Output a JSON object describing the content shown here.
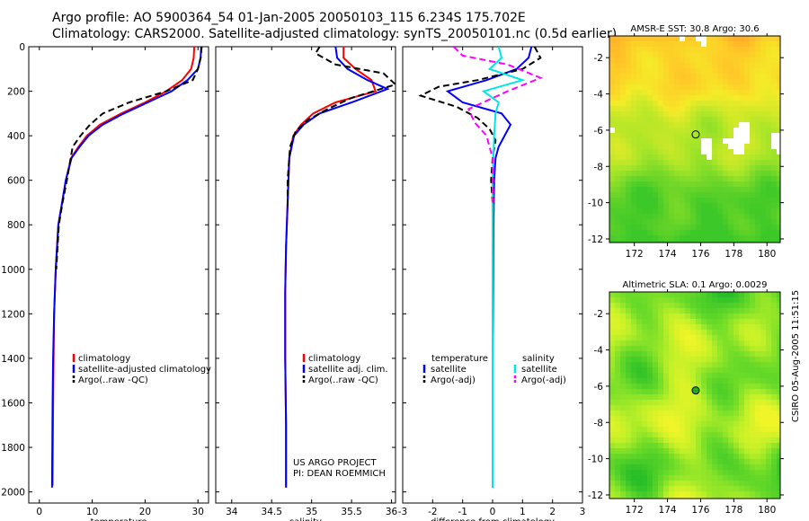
{
  "title_line1": "Argo profile: AO 5900364_54 01-Jan-2005 20050103_115 6.234S 175.702E",
  "title_line2": "Climatology: CARS2000. Satellite-adjusted climatology: synTS_20050101.nc (0.5d earlier)",
  "credit_line1": "US ARGO PROJECT",
  "credit_line2": "PI: DEAN ROEMMICH",
  "timestamp": "CSIRO 05-Aug-2005 11:51:15",
  "colors": {
    "climatology": "#ff0000",
    "satellite": "#0000ff",
    "argo": "#000000",
    "cyan": "#00e5e5",
    "magenta": "#ff00ff"
  },
  "chart_data": [
    {
      "type": "line",
      "xlabel": "temperature",
      "ylabel": "",
      "xlim": [
        -2,
        32
      ],
      "ylim": [
        0,
        2050
      ],
      "y_inverted": true,
      "xticks": [
        0,
        10,
        20,
        30
      ],
      "yticks": [
        0,
        200,
        400,
        600,
        800,
        1000,
        1200,
        1400,
        1600,
        1800,
        2000
      ],
      "legend": [
        "climatology",
        "satellite-adjusted climatology",
        "Argo(..raw -QC)"
      ],
      "series": [
        {
          "name": "climatology",
          "style": "solid",
          "color": "#ff0000",
          "x": [
            29.3,
            29.2,
            28.7,
            27,
            24,
            20,
            15.5,
            11.5,
            9,
            7.4,
            6,
            5,
            4.3,
            3.6,
            3.1,
            2.8,
            2.7,
            2.6,
            2.5
          ],
          "y": [
            0,
            50,
            100,
            150,
            200,
            250,
            300,
            350,
            400,
            450,
            500,
            600,
            700,
            800,
            1000,
            1200,
            1400,
            1600,
            1970
          ]
        },
        {
          "name": "satellite-adjusted climatology",
          "style": "solid",
          "color": "#0000ff",
          "x": [
            30.6,
            30.5,
            30,
            28,
            25,
            20.5,
            16,
            12,
            9.3,
            7.6,
            6.1,
            5,
            4.3,
            3.6,
            3.1,
            2.8,
            2.6,
            2.5,
            2.4
          ],
          "y": [
            0,
            50,
            100,
            150,
            200,
            250,
            300,
            350,
            400,
            450,
            500,
            600,
            700,
            800,
            1000,
            1200,
            1400,
            1600,
            1980
          ]
        },
        {
          "name": "Argo(..raw -QC)",
          "style": "dash",
          "color": "#000000",
          "x": [
            30.7,
            30.5,
            30,
            29,
            24,
            17,
            12,
            9.6,
            7.8,
            6.3,
            5.2,
            4.4,
            3.7,
            3.2
          ],
          "y": [
            0,
            50,
            100,
            150,
            200,
            250,
            300,
            350,
            400,
            450,
            600,
            700,
            800,
            1000
          ]
        }
      ]
    },
    {
      "type": "line",
      "xlabel": "salinity",
      "xlim": [
        33.8,
        36.05
      ],
      "ylim": [
        0,
        2050
      ],
      "y_inverted": true,
      "xticks": [
        34,
        34.5,
        35,
        35.5,
        36
      ],
      "legend": [
        "climatology",
        "satellite adj. clim.",
        "Argo(..raw -QC)"
      ],
      "series": [
        {
          "name": "climatology",
          "style": "solid",
          "color": "#ff0000",
          "x": [
            35.4,
            35.4,
            35.55,
            35.75,
            35.8,
            35.3,
            35.02,
            34.87,
            34.77,
            34.72,
            34.7,
            34.68,
            34.67,
            34.67,
            34.68,
            34.68
          ],
          "y": [
            0,
            50,
            100,
            150,
            200,
            250,
            300,
            350,
            400,
            500,
            700,
            900,
            1100,
            1400,
            1700,
            1980
          ]
        },
        {
          "name": "satellite adj. clim.",
          "style": "solid",
          "color": "#0000ff",
          "x": [
            35.3,
            35.32,
            35.45,
            35.7,
            35.95,
            35.5,
            35.1,
            34.9,
            34.78,
            34.72,
            34.7,
            34.68,
            34.67,
            34.67,
            34.68,
            34.68
          ],
          "y": [
            0,
            50,
            100,
            150,
            190,
            250,
            300,
            350,
            400,
            500,
            700,
            900,
            1100,
            1400,
            1700,
            1980
          ]
        },
        {
          "name": "Argo(..raw -QC)",
          "style": "dash",
          "color": "#000000",
          "x": [
            35.1,
            35.05,
            35.3,
            35.9,
            36.05,
            35.5,
            35.2,
            34.95,
            34.8,
            34.73,
            34.7,
            34.7
          ],
          "y": [
            0,
            30,
            80,
            120,
            170,
            230,
            280,
            330,
            380,
            450,
            600,
            720
          ]
        }
      ]
    },
    {
      "type": "line",
      "xlabel": "difference from climatology",
      "xlim": [
        -3,
        3
      ],
      "ylim": [
        0,
        2050
      ],
      "y_inverted": true,
      "xticks": [
        -3,
        -2,
        -1,
        0,
        1,
        2,
        3
      ],
      "legend_left": [
        "temperature",
        "satellite",
        "Argo(-adj)"
      ],
      "legend_right": [
        "salinity",
        "satellite",
        "Argo(-adj)"
      ],
      "series": [
        {
          "name": "temperature satellite",
          "style": "solid",
          "color": "#0000ff",
          "x": [
            1.3,
            1.2,
            0.8,
            -0.2,
            -1.5,
            -1.0,
            0.3,
            0.6,
            0.4,
            0.2,
            0.1,
            0.05,
            0.03,
            0.02,
            0.0,
            0.0
          ],
          "y": [
            0,
            50,
            100,
            150,
            200,
            250,
            300,
            350,
            400,
            450,
            500,
            600,
            800,
            1000,
            1500,
            1980
          ]
        },
        {
          "name": "temperature Argo(-adj)",
          "style": "dash",
          "color": "#000000",
          "x": [
            1.4,
            1.6,
            1.0,
            -0.5,
            -1.8,
            -2.4,
            -1.2,
            -0.5,
            -0.1,
            0.1,
            0.0,
            -0.05,
            0.0
          ],
          "y": [
            0,
            50,
            100,
            150,
            180,
            220,
            270,
            320,
            370,
            420,
            500,
            600,
            700
          ]
        },
        {
          "name": "salinity satellite",
          "style": "solid",
          "color": "#00e5e5",
          "x": [
            0.2,
            0.3,
            -0.1,
            1.0,
            -0.3,
            0.2,
            0.1,
            0.05,
            0.0,
            0.0,
            0.0,
            0.0
          ],
          "y": [
            0,
            50,
            100,
            150,
            200,
            250,
            300,
            400,
            600,
            1000,
            1500,
            1980
          ]
        },
        {
          "name": "salinity Argo(-adj)",
          "style": "dash",
          "color": "#ff00ff",
          "x": [
            -1.3,
            -1.0,
            0.5,
            1.6,
            0.5,
            -0.8,
            -0.6,
            -0.2,
            0.0,
            0.0
          ],
          "y": [
            0,
            40,
            80,
            140,
            200,
            280,
            340,
            400,
            500,
            700
          ]
        }
      ]
    },
    {
      "type": "heatmap",
      "title": "AMSR-E SST: 30.8 Argo: 30.6",
      "xlim": [
        170.5,
        180.8
      ],
      "ylim": [
        -12.2,
        -0.8
      ],
      "xticks": [
        172,
        174,
        176,
        178,
        180
      ],
      "yticks": [
        -2,
        -4,
        -6,
        -8,
        -10,
        -12
      ],
      "marker": {
        "lon": 175.702,
        "lat": -6.234
      }
    },
    {
      "type": "heatmap",
      "title": "Altimetric SLA: 0.1 Argo: 0.0029",
      "xlim": [
        170.5,
        180.8
      ],
      "ylim": [
        -12.2,
        -0.8
      ],
      "xticks": [
        172,
        174,
        176,
        178,
        180
      ],
      "yticks": [
        -2,
        -4,
        -6,
        -8,
        -10,
        -12
      ],
      "marker": {
        "lon": 175.702,
        "lat": -6.234
      }
    }
  ]
}
